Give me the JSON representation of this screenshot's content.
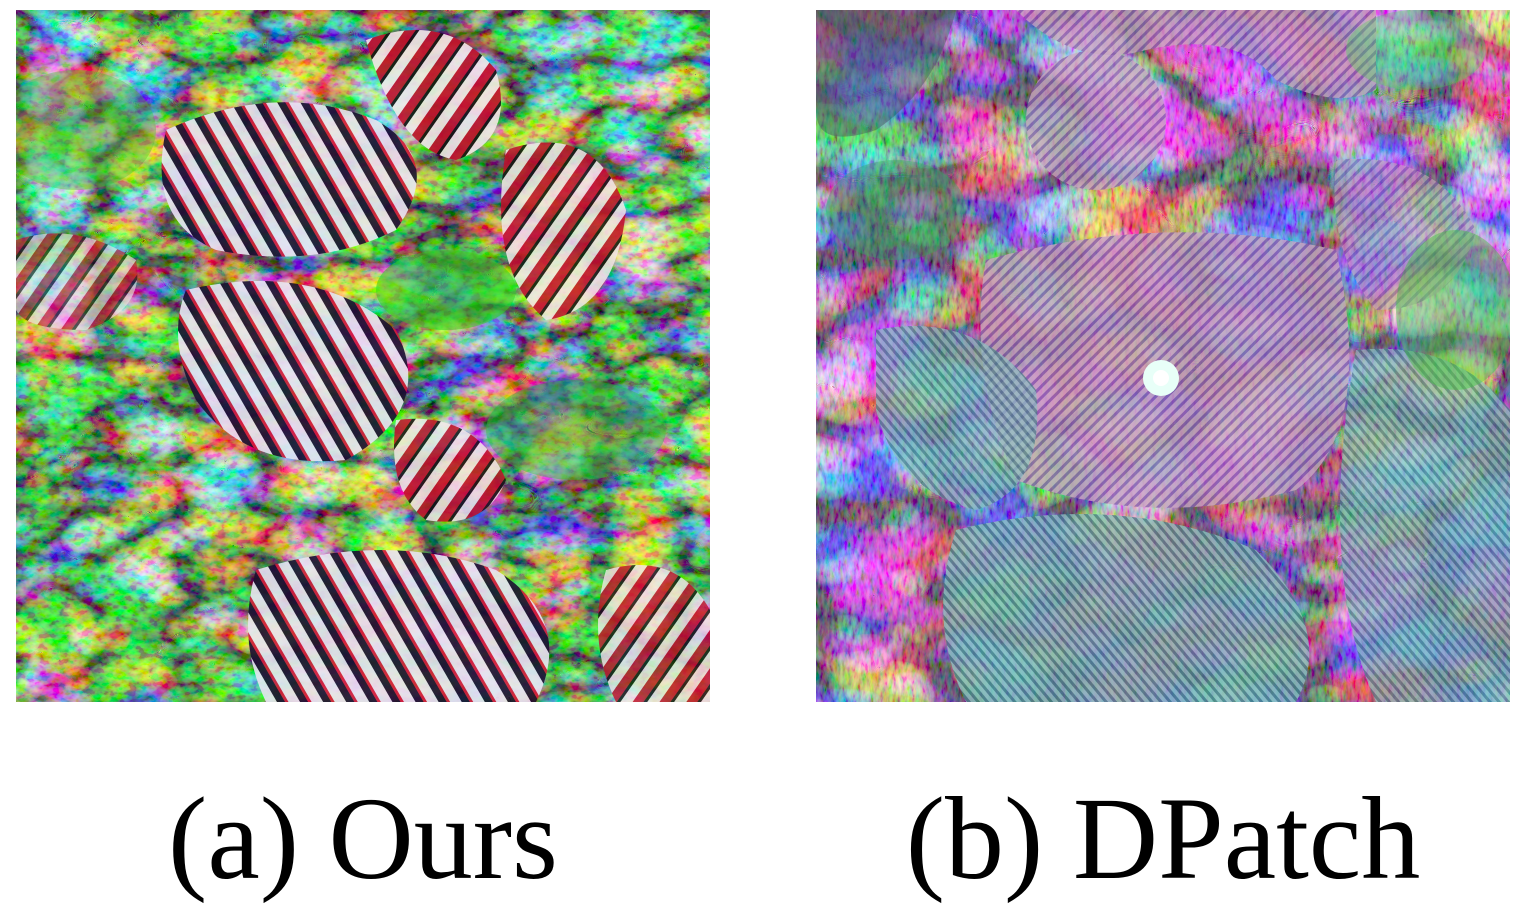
{
  "figure": {
    "panels": [
      {
        "id": "a",
        "caption": "(a) Ours",
        "image_description_icon": "adversarial-patch-zebra-texture-image"
      },
      {
        "id": "b",
        "caption": "(b) DPatch",
        "image_description_icon": "adversarial-patch-dpatch-texture-image"
      }
    ]
  }
}
